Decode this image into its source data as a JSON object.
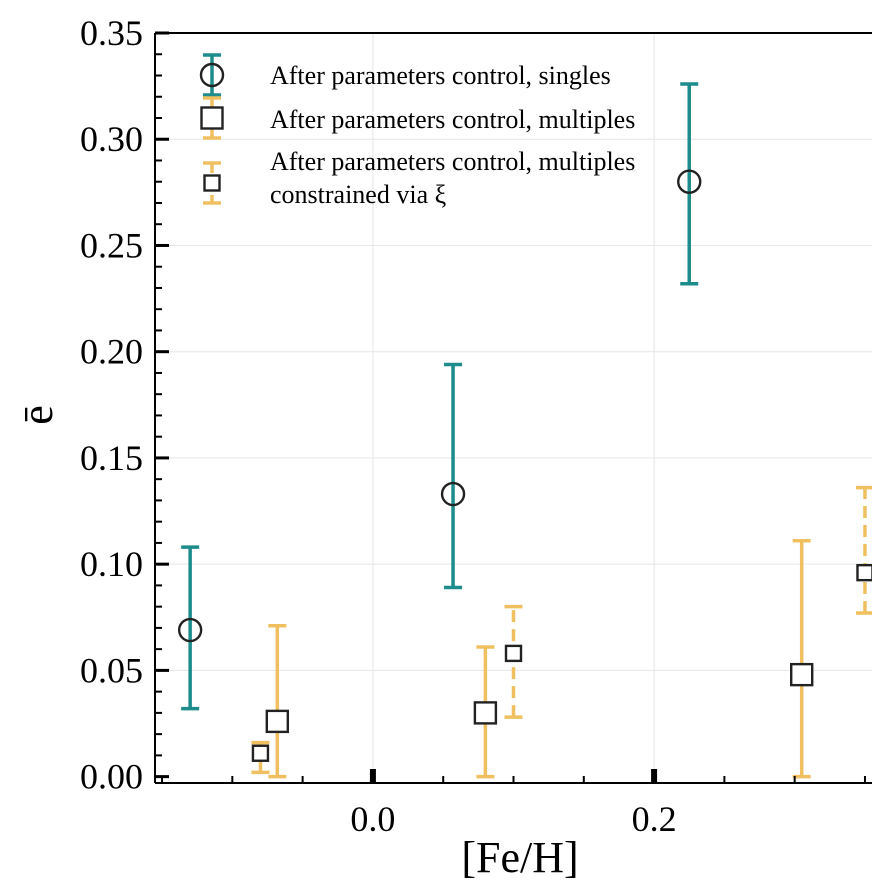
{
  "chart_data": {
    "type": "scatter",
    "xlabel": "[Fe/H]",
    "ylabel": "ē",
    "xlim": [
      -0.155,
      0.355
    ],
    "ylim": [
      -0.003,
      0.35
    ],
    "x_ticks": [
      0.0,
      0.2
    ],
    "x_tick_labels": [
      "0.0",
      "0.2"
    ],
    "y_ticks": [
      0.0,
      0.05,
      0.1,
      0.15,
      0.2,
      0.25,
      0.3,
      0.35
    ],
    "y_tick_labels": [
      "0.00",
      "0.05",
      "0.10",
      "0.15",
      "0.20",
      "0.25",
      "0.30",
      "0.35"
    ],
    "grid": true,
    "legend_position": "top-left",
    "colors": {
      "singles": "#1e8c8c",
      "multiples": "#f0c060",
      "marker_edge": "#222222",
      "grid": "#e6e6e6"
    },
    "series": [
      {
        "name": "After parameters control, singles",
        "marker": "circle",
        "errorbar_style": "solid",
        "color": "#1e8c8c",
        "points": [
          {
            "x": -0.13,
            "y": 0.069,
            "y_low": 0.032,
            "y_high": 0.108
          },
          {
            "x": 0.057,
            "y": 0.133,
            "y_low": 0.089,
            "y_high": 0.194
          },
          {
            "x": 0.225,
            "y": 0.28,
            "y_low": 0.232,
            "y_high": 0.326
          }
        ]
      },
      {
        "name": "After parameters control, multiples",
        "marker": "square",
        "errorbar_style": "solid",
        "color": "#f0c060",
        "points": [
          {
            "x": -0.068,
            "y": 0.026,
            "y_low": 0.0,
            "y_high": 0.071
          },
          {
            "x": 0.08,
            "y": 0.03,
            "y_low": 0.0,
            "y_high": 0.061
          },
          {
            "x": 0.305,
            "y": 0.048,
            "y_low": 0.0,
            "y_high": 0.111
          }
        ]
      },
      {
        "name": "After parameters control, multiples\nconstrained via ξ",
        "marker": "small-square",
        "errorbar_style": "dashed",
        "color": "#f0c060",
        "points": [
          {
            "x": -0.08,
            "y": 0.011,
            "y_low": 0.002,
            "y_high": 0.016
          },
          {
            "x": 0.1,
            "y": 0.058,
            "y_low": 0.028,
            "y_high": 0.08
          },
          {
            "x": 0.35,
            "y": 0.096,
            "y_low": 0.077,
            "y_high": 0.136
          }
        ]
      }
    ],
    "legend": [
      {
        "line1": "After parameters control, singles",
        "line2": ""
      },
      {
        "line1": "After parameters control, multiples",
        "line2": ""
      },
      {
        "line1": "After parameters control, multiples",
        "line2": "constrained via ξ"
      }
    ]
  }
}
